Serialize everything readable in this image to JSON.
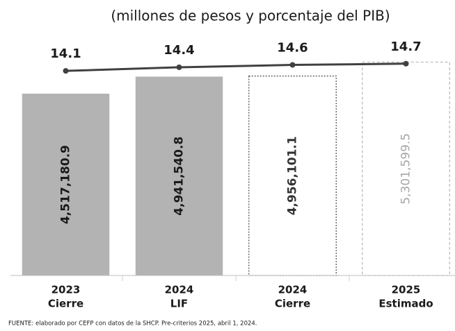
{
  "chart_data": {
    "type": "bar",
    "subtitle": "(millones de pesos y porcentaje del PIB)",
    "source": "FUENTE: elaborado por CEFP con datos de la SHCP. Pre-criterios 2025, abril 1, 2024.",
    "categories": [
      [
        "2023",
        "Cierre"
      ],
      [
        "2024",
        "LIF"
      ],
      [
        "2024",
        "Cierre"
      ],
      [
        "2025",
        "Estimado"
      ]
    ],
    "values": [
      4517180.9,
      4941540.8,
      4956101.1,
      5301599.5
    ],
    "value_labels": [
      "4,517,180.9",
      "4,941,540.8",
      "4,956,101.1",
      "5,301,599.5"
    ],
    "bar_fills": [
      "#b3b3b3",
      "#b3b3b3",
      "#ffffff",
      "#ffffff"
    ],
    "bar_strokes": [
      "none",
      "none",
      "#555555",
      "#bbbbbb"
    ],
    "label_colors": [
      "#1a1a1a",
      "#1a1a1a",
      "#333333",
      "#a6a6a6"
    ],
    "ylim": [
      0,
      5500000
    ],
    "line": {
      "values": [
        14.1,
        14.4,
        14.6,
        14.7
      ],
      "color": "#404040",
      "axis": "y2"
    },
    "y2lim": [
      -3,
      15.5
    ]
  }
}
